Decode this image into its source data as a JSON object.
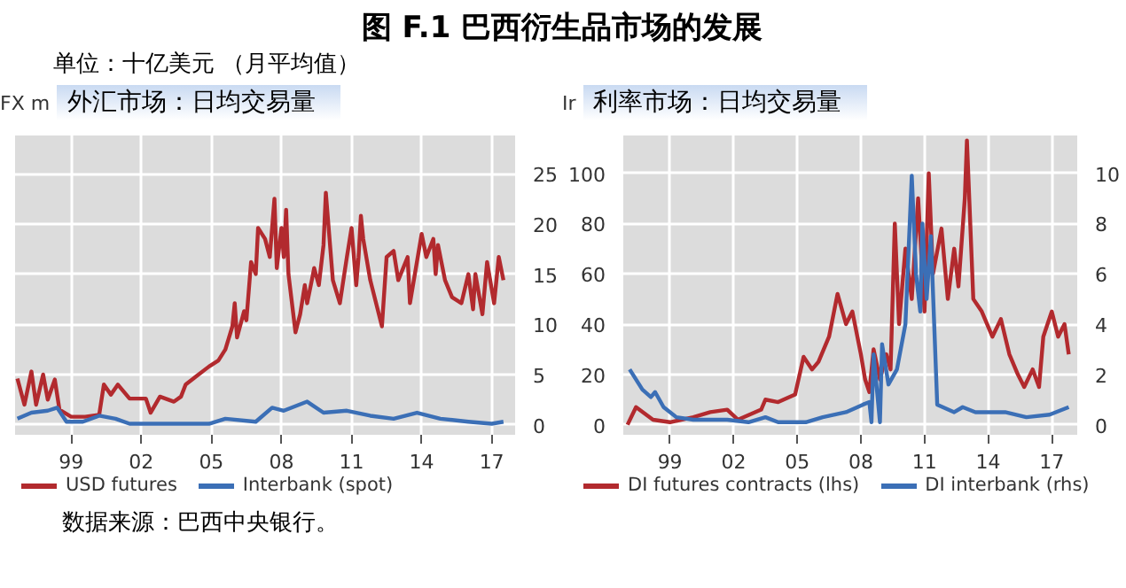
{
  "chart_data": [
    {
      "type": "line",
      "title": "外汇市场：日均交易量",
      "subtitle": "单位：十亿美元 （月平均值）",
      "y2label": "FX m",
      "annotations": [
        "图 F.1    巴西衍生品市场的发展",
        "数据来源：巴西中央银行。"
      ],
      "xlim": [
        1996.6,
        2018.0
      ],
      "xticks": [
        {
          "value": 1999,
          "label": "99"
        },
        {
          "value": 2002,
          "label": "02"
        },
        {
          "value": 2005,
          "label": "05"
        },
        {
          "value": 2008,
          "label": "08"
        },
        {
          "value": 2011,
          "label": "11"
        },
        {
          "value": 2014,
          "label": "14"
        },
        {
          "value": 2017,
          "label": "17"
        }
      ],
      "y2lim": [
        -1,
        28.8
      ],
      "y2ticks": [
        0,
        5,
        10,
        15,
        20,
        25
      ],
      "grid": true,
      "legend": "bottom",
      "series": [
        {
          "name": "USD futures",
          "color": "#b22a2e",
          "axis": "y2",
          "x": [
            1996.7,
            1997.0,
            1997.3,
            1997.5,
            1997.8,
            1998.0,
            1998.3,
            1998.5,
            1999.0,
            1999.6,
            2000.2,
            2000.4,
            2000.7,
            2001.0,
            2001.5,
            2002.2,
            2002.4,
            2002.8,
            2003.4,
            2003.7,
            2003.9,
            2004.4,
            2004.9,
            2005.3,
            2005.6,
            2005.9,
            2006.0,
            2006.1,
            2006.4,
            2006.5,
            2006.7,
            2006.9,
            2007.0,
            2007.3,
            2007.5,
            2007.7,
            2007.8,
            2008.0,
            2008.1,
            2008.2,
            2008.3,
            2008.6,
            2008.8,
            2009.0,
            2009.1,
            2009.3,
            2009.4,
            2009.6,
            2009.8,
            2009.9,
            2010.2,
            2010.5,
            2010.8,
            2011.0,
            2011.2,
            2011.3,
            2011.4,
            2011.5,
            2011.8,
            2012.3,
            2012.5,
            2012.8,
            2013.0,
            2013.4,
            2013.5,
            2014.0,
            2014.2,
            2014.5,
            2014.6,
            2014.7,
            2015.0,
            2015.3,
            2015.7,
            2016.0,
            2016.2,
            2016.3,
            2016.6,
            2016.8,
            2017.1,
            2017.3,
            2017.5
          ],
          "values": [
            4.6,
            2.0,
            5.3,
            2.0,
            5.0,
            2.5,
            4.5,
            1.5,
            0.8,
            0.8,
            1.0,
            4.0,
            3.0,
            4.0,
            2.6,
            2.6,
            1.2,
            2.8,
            2.3,
            2.8,
            4.0,
            4.9,
            5.8,
            6.4,
            7.5,
            9.8,
            12.1,
            8.7,
            11.3,
            10.4,
            16.2,
            15.0,
            19.6,
            18.5,
            16.7,
            22.5,
            15.6,
            19.6,
            16.7,
            21.4,
            15.0,
            9.2,
            11.0,
            13.9,
            12.1,
            14.4,
            15.6,
            13.9,
            17.9,
            23.1,
            14.4,
            12.1,
            16.7,
            19.6,
            13.9,
            16.7,
            20.8,
            18.5,
            14.4,
            9.8,
            16.7,
            17.3,
            14.4,
            16.7,
            12.1,
            19.0,
            16.7,
            18.5,
            15.0,
            17.9,
            14.4,
            12.7,
            12.1,
            15.0,
            11.5,
            15.0,
            11.0,
            16.2,
            12.1,
            16.7,
            14.4
          ]
        },
        {
          "name": "Interbank (spot)",
          "color": "#3b6fb6",
          "axis": "y2",
          "x": [
            1996.7,
            1997.3,
            1998.0,
            1998.4,
            1998.8,
            1999.5,
            2000.2,
            2000.9,
            2001.5,
            2003.0,
            2004.9,
            2005.6,
            2006.9,
            2007.6,
            2008.1,
            2009.1,
            2009.8,
            2010.8,
            2011.8,
            2012.8,
            2013.8,
            2014.8,
            2016.0,
            2017.0,
            2017.5
          ],
          "values": [
            0.6,
            1.2,
            1.4,
            1.7,
            0.3,
            0.3,
            0.9,
            0.6,
            0.1,
            0.1,
            0.1,
            0.6,
            0.3,
            1.7,
            1.4,
            2.3,
            1.2,
            1.4,
            0.9,
            0.6,
            1.2,
            0.6,
            0.3,
            0.1,
            0.3
          ]
        }
      ]
    },
    {
      "type": "line",
      "title": "利率市场：日均交易量",
      "ylabel": "Ir",
      "xlim": [
        1996.8,
        2018.2
      ],
      "xticks": [
        {
          "value": 1999,
          "label": "99"
        },
        {
          "value": 2002,
          "label": "02"
        },
        {
          "value": 2005,
          "label": "05"
        },
        {
          "value": 2008,
          "label": "08"
        },
        {
          "value": 2011,
          "label": "11"
        },
        {
          "value": 2014,
          "label": "14"
        },
        {
          "value": 2017,
          "label": "17"
        }
      ],
      "ylim": [
        -4,
        115
      ],
      "yticks": [
        0,
        20,
        40,
        60,
        80,
        100
      ],
      "y2lim": [
        -0.4,
        11.5
      ],
      "y2ticks": [
        0,
        2,
        4,
        6,
        8,
        10
      ],
      "grid": true,
      "legend": "bottom",
      "series": [
        {
          "name": "DI futures contracts (lhs)",
          "color": "#b22a2e",
          "x": [
            1997.0,
            1997.4,
            1998.2,
            1999.0,
            2000.1,
            2000.9,
            2001.7,
            2002.2,
            2003.3,
            2003.5,
            2004.1,
            2004.9,
            2005.3,
            2005.7,
            2006.0,
            2006.5,
            2006.9,
            2007.3,
            2007.6,
            2008.0,
            2008.2,
            2008.4,
            2008.6,
            2008.9,
            2009.2,
            2009.4,
            2009.6,
            2009.8,
            2010.1,
            2010.4,
            2010.7,
            2011.0,
            2011.2,
            2011.4,
            2011.8,
            2012.1,
            2012.4,
            2012.6,
            2012.9,
            2013.0,
            2013.3,
            2013.7,
            2014.2,
            2014.6,
            2015.0,
            2015.4,
            2015.7,
            2016.1,
            2016.4,
            2016.6,
            2017.0,
            2017.3,
            2017.6,
            2017.8
          ],
          "values": [
            0,
            7,
            2,
            1,
            3,
            5,
            6,
            2,
            6,
            10,
            9,
            12,
            27,
            22,
            25,
            35,
            52,
            40,
            45,
            28,
            18,
            13,
            30,
            18,
            28,
            22,
            80,
            40,
            70,
            50,
            90,
            45,
            100,
            60,
            78,
            50,
            70,
            55,
            90,
            113,
            50,
            45,
            35,
            42,
            28,
            20,
            15,
            22,
            15,
            35,
            45,
            35,
            40,
            28
          ]
        },
        {
          "name": "DI interbank (rhs)",
          "color": "#3b6fb6",
          "axis": "y2",
          "x": [
            1997.1,
            1997.7,
            1998.1,
            1998.3,
            1998.7,
            1999.3,
            2000.1,
            2001.7,
            2002.7,
            2003.5,
            2004.1,
            2005.4,
            2006.2,
            2007.3,
            2008.1,
            2008.4,
            2008.5,
            2008.6,
            2008.9,
            2009.0,
            2009.3,
            2009.7,
            2010.1,
            2010.4,
            2010.6,
            2010.8,
            2010.9,
            2011.1,
            2011.3,
            2011.6,
            2012.4,
            2012.8,
            2013.4,
            2014.8,
            2015.8,
            2016.9,
            2017.8
          ],
          "values": [
            2.2,
            1.4,
            1.1,
            1.3,
            0.7,
            0.3,
            0.2,
            0.2,
            0.1,
            0.3,
            0.1,
            0.1,
            0.3,
            0.5,
            0.8,
            0.9,
            0.1,
            2.8,
            0.1,
            3.2,
            1.6,
            2.2,
            4.0,
            9.9,
            6.0,
            4.5,
            8.0,
            5.0,
            7.5,
            0.8,
            0.5,
            0.7,
            0.5,
            0.5,
            0.3,
            0.4,
            0.7
          ]
        }
      ]
    }
  ]
}
